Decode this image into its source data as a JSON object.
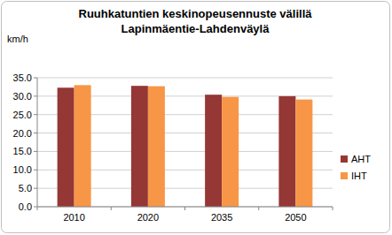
{
  "chart_data": {
    "type": "bar",
    "title": "Ruuhkatuntien keskinopeusennuste välillä\nLapinmäentie-Lahdenväylä",
    "y_label": "km/h",
    "categories": [
      "2010",
      "2020",
      "2035",
      "2050"
    ],
    "series": [
      {
        "name": "AHT",
        "color": "#953735",
        "values": [
          32.3,
          32.8,
          30.4,
          30.0
        ]
      },
      {
        "name": "IHT",
        "color": "#f79646",
        "values": [
          33.0,
          32.7,
          29.8,
          29.1
        ]
      }
    ],
    "ylim": [
      0,
      35
    ],
    "yticks": [
      {
        "value": 0,
        "label": "0.0"
      },
      {
        "value": 5,
        "label": "5.0"
      },
      {
        "value": 10,
        "label": "10.0"
      },
      {
        "value": 15,
        "label": "15.0"
      },
      {
        "value": 20,
        "label": "20.0"
      },
      {
        "value": 25,
        "label": "25.0"
      },
      {
        "value": 30,
        "label": "30.0"
      },
      {
        "value": 35,
        "label": "35.0"
      }
    ],
    "grid": true,
    "legend": "right"
  }
}
